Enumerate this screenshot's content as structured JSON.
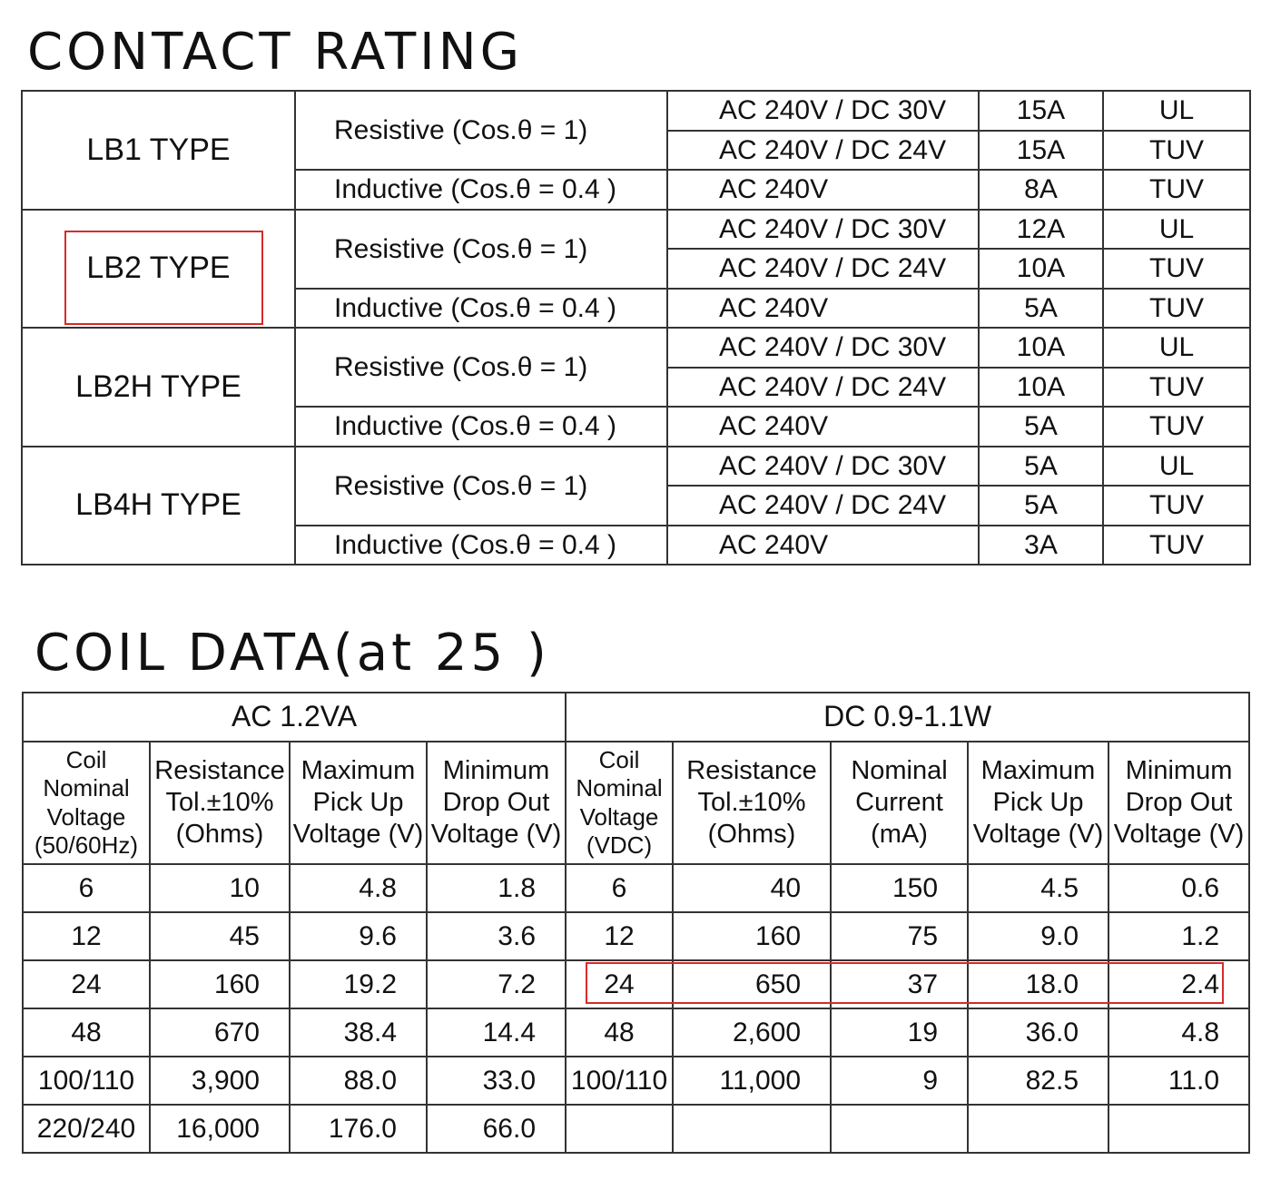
{
  "contact_rating": {
    "title": "CONTACT RATING",
    "types": [
      {
        "type": "LB1 TYPE",
        "resistive": {
          "label": "Resistive (Cos.θ = 1)",
          "rows": [
            {
              "voltage": "AC 240V / DC 30V",
              "current": "15A",
              "standard": "UL"
            },
            {
              "voltage": "AC 240V / DC 24V",
              "current": "15A",
              "standard": "TUV"
            }
          ]
        },
        "inductive": {
          "label": "Inductive (Cos.θ = 0.4 )",
          "voltage": "AC 240V",
          "current": "8A",
          "standard": "TUV"
        }
      },
      {
        "type": "LB2 TYPE",
        "resistive": {
          "label": "Resistive (Cos.θ = 1)",
          "rows": [
            {
              "voltage": "AC 240V / DC 30V",
              "current": "12A",
              "standard": "UL"
            },
            {
              "voltage": "AC 240V / DC 24V",
              "current": "10A",
              "standard": "TUV"
            }
          ]
        },
        "inductive": {
          "label": "Inductive (Cos.θ = 0.4 )",
          "voltage": "AC 240V",
          "current": "5A",
          "standard": "TUV"
        }
      },
      {
        "type": "LB2H TYPE",
        "resistive": {
          "label": "Resistive (Cos.θ = 1)",
          "rows": [
            {
              "voltage": "AC 240V / DC 30V",
              "current": "10A",
              "standard": "UL"
            },
            {
              "voltage": "AC 240V / DC 24V",
              "current": "10A",
              "standard": "TUV"
            }
          ]
        },
        "inductive": {
          "label": "Inductive (Cos.θ = 0.4 )",
          "voltage": "AC 240V",
          "current": "5A",
          "standard": "TUV"
        }
      },
      {
        "type": "LB4H TYPE",
        "resistive": {
          "label": "Resistive (Cos.θ = 1)",
          "rows": [
            {
              "voltage": "AC 240V / DC 30V",
              "current": "5A",
              "standard": "UL"
            },
            {
              "voltage": "AC 240V / DC 24V",
              "current": "5A",
              "standard": "TUV"
            }
          ]
        },
        "inductive": {
          "label": "Inductive (Cos.θ = 0.4 )",
          "voltage": "AC 240V",
          "current": "3A",
          "standard": "TUV"
        }
      }
    ],
    "highlighted_type": "LB2 TYPE"
  },
  "coil_data": {
    "title": "COIL DATA(at 25 )",
    "ac_group": "AC  1.2VA",
    "dc_group": "DC  0.9-1.1W",
    "headers": [
      "Coil\nNominal\nVoltage\n(50/60Hz)",
      "Resistance\nTol.±10%\n(Ohms)",
      "Maximum\nPick Up\nVoltage (V)",
      "Minimum\nDrop Out\nVoltage (V)",
      "Coil\nNominal\nVoltage\n(VDC)",
      "Resistance\nTol.±10%\n(Ohms)",
      "Nominal\nCurrent\n(mA)",
      "Maximum\nPick Up\nVoltage (V)",
      "Minimum\nDrop Out\nVoltage (V)"
    ],
    "rows": [
      [
        "6",
        "10",
        "4.8",
        "1.8",
        "6",
        "40",
        "150",
        "4.5",
        "0.6"
      ],
      [
        "12",
        "45",
        "9.6",
        "3.6",
        "12",
        "160",
        "75",
        "9.0",
        "1.2"
      ],
      [
        "24",
        "160",
        "19.2",
        "7.2",
        "24",
        "650",
        "37",
        "18.0",
        "2.4"
      ],
      [
        "48",
        "670",
        "38.4",
        "14.4",
        "48",
        "2,600",
        "19",
        "36.0",
        "4.8"
      ],
      [
        "100/110",
        "3,900",
        "88.0",
        "33.0",
        "100/110",
        "11,000",
        "9",
        "82.5",
        "11.0"
      ],
      [
        "220/240",
        "16,000",
        "176.0",
        "66.0",
        "",
        "",
        "",
        "",
        ""
      ]
    ],
    "highlighted_row": "24"
  },
  "highlight_color": "#d62b2b"
}
